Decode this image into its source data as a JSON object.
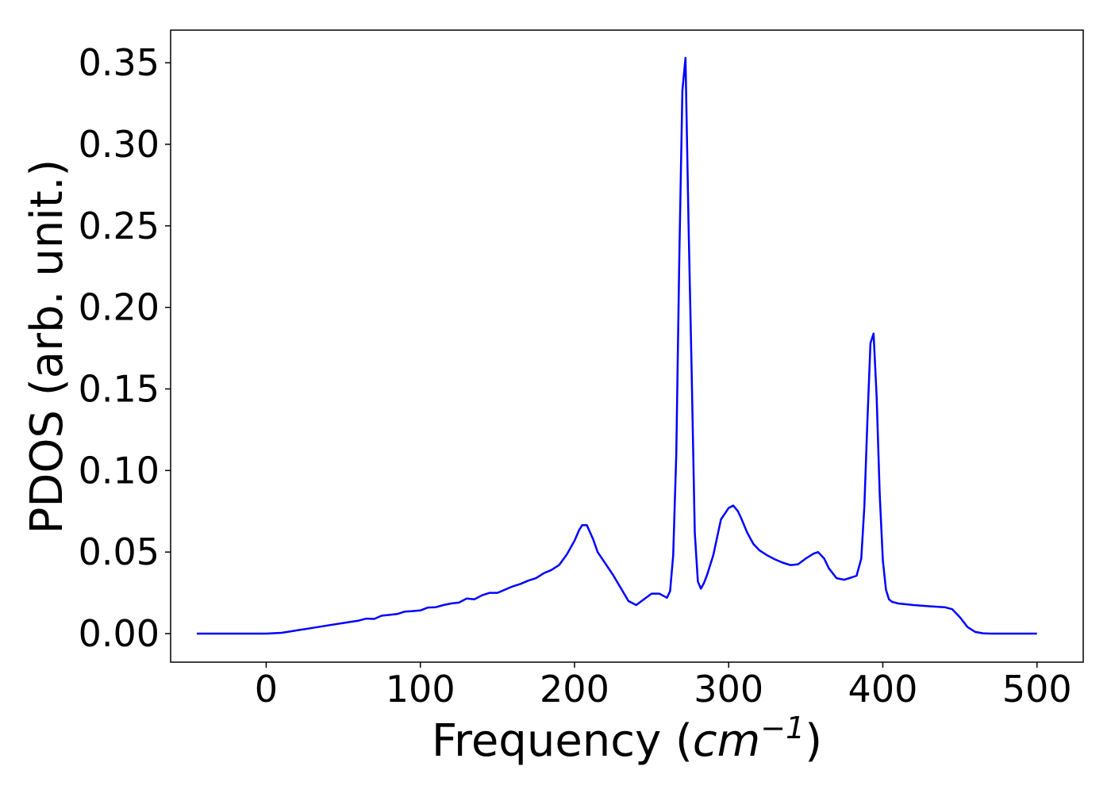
{
  "chart_data": {
    "type": "line",
    "title": "",
    "xlabel": {
      "prefix": "Frequency (",
      "var": "cm",
      "sup": "−1",
      "suffix": ")"
    },
    "ylabel": "PDOS (arb. unit.)",
    "xlim": [
      -62,
      530
    ],
    "ylim": [
      -0.0175,
      0.37
    ],
    "xticks": [
      0,
      100,
      200,
      300,
      400,
      500
    ],
    "xtick_labels": [
      "0",
      "100",
      "200",
      "300",
      "400",
      "500"
    ],
    "yticks": [
      0.0,
      0.05,
      0.1,
      0.15,
      0.2,
      0.25,
      0.3,
      0.35
    ],
    "ytick_labels": [
      "0.00",
      "0.05",
      "0.10",
      "0.15",
      "0.20",
      "0.25",
      "0.30",
      "0.35"
    ],
    "grid": false,
    "series": [
      {
        "color": "#0000ff",
        "x": [
          -45,
          0,
          10,
          20,
          30,
          40,
          50,
          60,
          65,
          70,
          75,
          80,
          85,
          90,
          95,
          100,
          105,
          110,
          115,
          120,
          125,
          130,
          135,
          140,
          145,
          150,
          155,
          160,
          165,
          170,
          175,
          180,
          185,
          190,
          195,
          200,
          203,
          205,
          208,
          212,
          215,
          220,
          225,
          230,
          235,
          240,
          245,
          250,
          255,
          260,
          262,
          264,
          266,
          268,
          270,
          272,
          274,
          276,
          278,
          280,
          282,
          284,
          286,
          288,
          290,
          295,
          300,
          303,
          306,
          308,
          312,
          316,
          320,
          325,
          330,
          335,
          340,
          345,
          350,
          355,
          358,
          362,
          365,
          370,
          375,
          380,
          383,
          386,
          388,
          390,
          392,
          394,
          396,
          398,
          400,
          402,
          404,
          406,
          408,
          410,
          415,
          420,
          430,
          440,
          445,
          450,
          455,
          460,
          465,
          470,
          480,
          500
        ],
        "y": [
          0.0,
          0.0,
          0.0005,
          0.002,
          0.0035,
          0.005,
          0.0065,
          0.008,
          0.0092,
          0.009,
          0.011,
          0.0115,
          0.012,
          0.0135,
          0.0138,
          0.0142,
          0.016,
          0.0162,
          0.0175,
          0.0185,
          0.019,
          0.0215,
          0.021,
          0.0235,
          0.025,
          0.025,
          0.027,
          0.029,
          0.0305,
          0.0325,
          0.034,
          0.037,
          0.039,
          0.042,
          0.0485,
          0.057,
          0.0635,
          0.0665,
          0.0665,
          0.058,
          0.05,
          0.043,
          0.036,
          0.028,
          0.02,
          0.0175,
          0.021,
          0.0245,
          0.0245,
          0.022,
          0.026,
          0.048,
          0.11,
          0.23,
          0.333,
          0.353,
          0.25,
          0.16,
          0.062,
          0.032,
          0.0275,
          0.031,
          0.036,
          0.042,
          0.048,
          0.07,
          0.077,
          0.0785,
          0.075,
          0.071,
          0.062,
          0.055,
          0.051,
          0.048,
          0.0455,
          0.0435,
          0.042,
          0.0425,
          0.046,
          0.049,
          0.05,
          0.046,
          0.04,
          0.034,
          0.033,
          0.0345,
          0.0355,
          0.046,
          0.078,
          0.13,
          0.178,
          0.184,
          0.145,
          0.085,
          0.045,
          0.027,
          0.021,
          0.0195,
          0.019,
          0.0185,
          0.018,
          0.0175,
          0.0168,
          0.0162,
          0.015,
          0.01,
          0.004,
          0.001,
          0.0002,
          0.0,
          0.0,
          0.0
        ]
      }
    ]
  }
}
